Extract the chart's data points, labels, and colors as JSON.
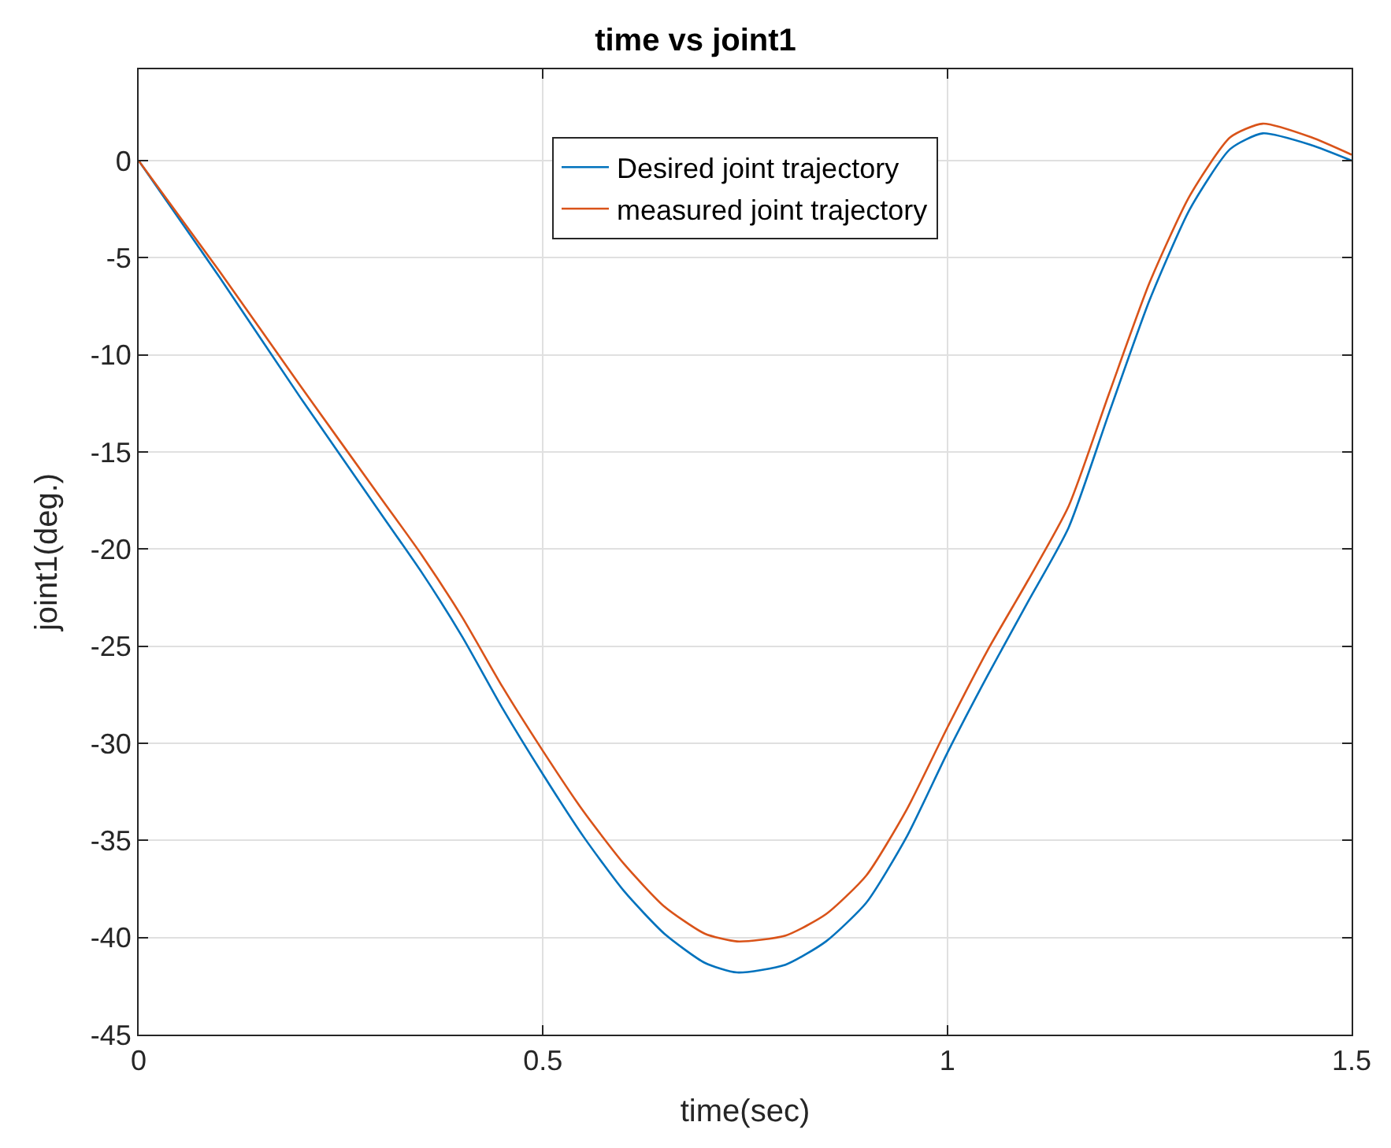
{
  "chart_data": {
    "type": "line",
    "title": "time vs joint1",
    "xlabel": "time(sec)",
    "ylabel": "joint1(deg.)",
    "x": [
      0,
      0.1,
      0.2,
      0.3,
      0.35,
      0.4,
      0.45,
      0.5,
      0.55,
      0.6,
      0.65,
      0.7,
      0.74,
      0.8,
      0.85,
      0.9,
      0.95,
      1.0,
      1.05,
      1.1,
      1.15,
      1.2,
      1.25,
      1.3,
      1.35,
      1.39,
      1.45,
      1.5
    ],
    "series": [
      {
        "name": "Desired joint trajectory",
        "color": "#0072bd",
        "values": [
          0,
          -6.0,
          -12.2,
          -18.2,
          -21.2,
          -24.5,
          -28.2,
          -31.6,
          -34.8,
          -37.6,
          -39.8,
          -41.3,
          -41.8,
          -41.4,
          -40.2,
          -38.2,
          -34.8,
          -30.5,
          -26.5,
          -22.7,
          -18.9,
          -13.0,
          -7.2,
          -2.5,
          0.6,
          1.4,
          0.8,
          0
        ]
      },
      {
        "name": "measured joint trajectory",
        "color": "#d95319",
        "values": [
          0,
          -5.7,
          -11.6,
          -17.4,
          -20.3,
          -23.5,
          -27.1,
          -30.4,
          -33.5,
          -36.2,
          -38.4,
          -39.8,
          -40.2,
          -39.9,
          -38.8,
          -36.8,
          -33.4,
          -29.2,
          -25.2,
          -21.6,
          -17.8,
          -12.0,
          -6.3,
          -1.8,
          1.2,
          1.9,
          1.2,
          0.3
        ]
      }
    ],
    "xlim": [
      0,
      1.5
    ],
    "xticks": [
      0,
      0.5,
      1,
      1.5
    ],
    "ylim": [
      -45,
      4.7
    ],
    "yticks": [
      -45,
      -40,
      -35,
      -30,
      -25,
      -20,
      -15,
      -10,
      -5,
      0
    ],
    "grid": true,
    "legend": "top",
    "line_style": "solid",
    "marker": "none"
  }
}
